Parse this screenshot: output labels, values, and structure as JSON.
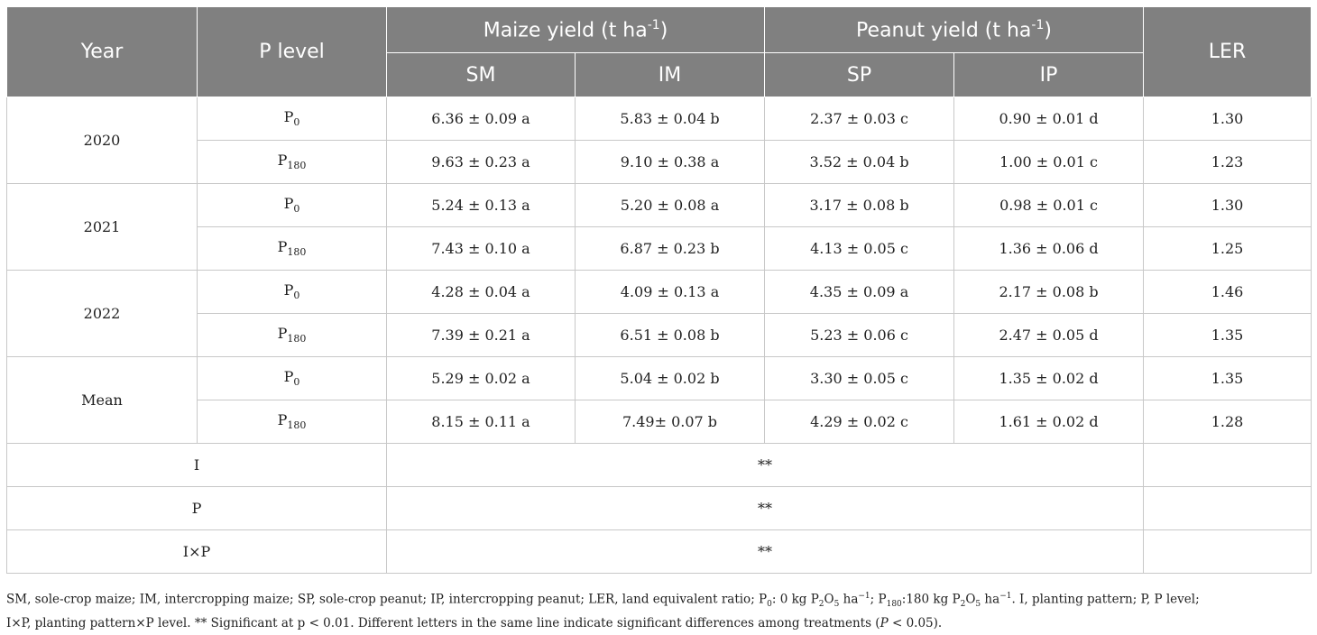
{
  "header": {
    "year": "Year",
    "p_level": "P level",
    "maize_yield": "Maize yield (t ha",
    "maize_yield_sup": "-1",
    "maize_yield_close": ")",
    "peanut_yield": "Peanut yield (t ha",
    "peanut_yield_sup": "-1",
    "peanut_yield_close": ")",
    "ler": "LER",
    "sm": "SM",
    "im": "IM",
    "sp": "SP",
    "ip": "IP"
  },
  "p_labels": {
    "base": "P",
    "p0_sub": "0",
    "p180_sub": "180"
  },
  "groups": [
    {
      "year": "2020",
      "rows": [
        {
          "sm": "6.36 ± 0.09 a",
          "im": "5.83 ± 0.04 b",
          "sp": "2.37 ± 0.03 c",
          "ip": "0.90 ± 0.01 d",
          "ler": "1.30"
        },
        {
          "sm": "9.63 ± 0.23 a",
          "im": "9.10 ± 0.38 a",
          "sp": "3.52 ± 0.04 b",
          "ip": "1.00 ± 0.01 c",
          "ler": "1.23"
        }
      ]
    },
    {
      "year": "2021",
      "rows": [
        {
          "sm": "5.24 ± 0.13 a",
          "im": "5.20 ± 0.08 a",
          "sp": "3.17 ± 0.08 b",
          "ip": "0.98 ± 0.01 c",
          "ler": "1.30"
        },
        {
          "sm": "7.43 ± 0.10 a",
          "im": "6.87 ± 0.23 b",
          "sp": "4.13 ± 0.05 c",
          "ip": "1.36 ± 0.06 d",
          "ler": "1.25"
        }
      ]
    },
    {
      "year": "2022",
      "rows": [
        {
          "sm": "4.28 ± 0.04 a",
          "im": "4.09 ± 0.13 a",
          "sp": "4.35 ± 0.09 a",
          "ip": "2.17 ± 0.08 b",
          "ler": "1.46"
        },
        {
          "sm": "7.39 ± 0.21 a",
          "im": "6.51 ± 0.08 b",
          "sp": "5.23 ± 0.06 c",
          "ip": "2.47 ± 0.05 d",
          "ler": "1.35"
        }
      ]
    },
    {
      "year": "Mean",
      "rows": [
        {
          "sm": "5.29 ± 0.02 a",
          "im": "5.04 ± 0.02 b",
          "sp": "3.30 ± 0.05 c",
          "ip": "1.35 ± 0.02 d",
          "ler": "1.35"
        },
        {
          "sm": "8.15 ± 0.11 a",
          "im": "7.49± 0.07 b",
          "sp": "4.29 ± 0.02 c",
          "ip": "1.61 ± 0.02 d",
          "ler": "1.28"
        }
      ]
    }
  ],
  "significance": [
    {
      "factor": "I",
      "value": "**"
    },
    {
      "factor": "P",
      "value": "**"
    },
    {
      "factor": "I×P",
      "value": "**"
    }
  ],
  "footnote": {
    "line1_a": "SM, sole-crop maize; IM, intercropping maize; SP, sole-crop peanut; IP, intercropping peanut; LER, land equivalent ratio; P",
    "line1_b": ": 0 kg P",
    "line1_c": "O",
    "line1_d": " ha",
    "line1_e": "; P",
    "line1_f": ":180 kg P",
    "line1_g": "O",
    "line1_h": " ha",
    "line1_i": ". I, planting pattern; P, P level;",
    "sub_0": "0",
    "sub_2": "2",
    "sub_5": "5",
    "sub_180": "180",
    "sup_neg1": "−1",
    "line2_a": "I×P, planting pattern×P level. ** Significant at p < 0.01. Different letters in the same line indicate significant differences among treatments (",
    "line2_p": "P",
    "line2_b": " < 0.05)."
  }
}
